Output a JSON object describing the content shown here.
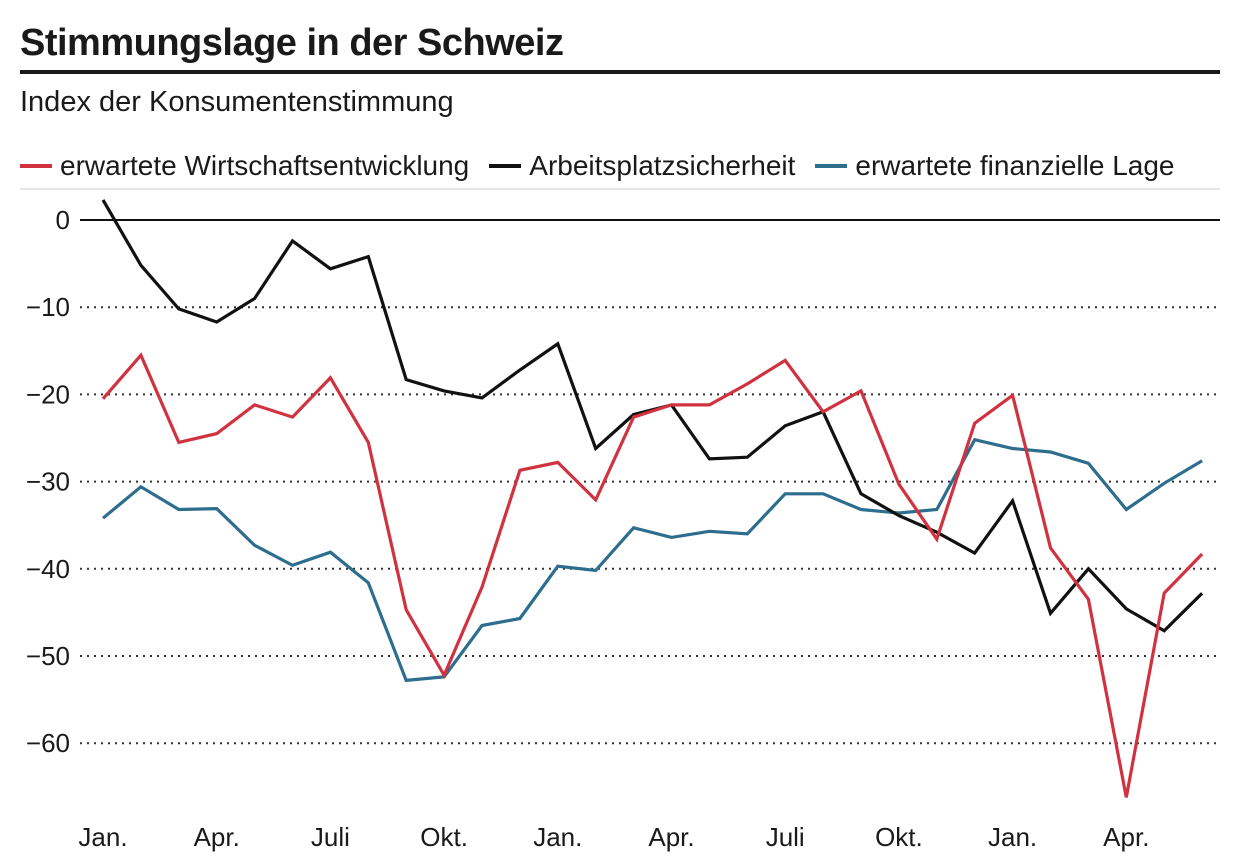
{
  "chart_data": {
    "type": "line",
    "title": "Stimmungslage in der Schweiz",
    "subtitle": "Index der Konsumentenstimmung",
    "xlabel": "",
    "ylabel": "",
    "ylim": [
      -66,
      2
    ],
    "yticks": [
      0,
      -10,
      -20,
      -30,
      -40,
      -50,
      -60
    ],
    "ytick_labels": [
      "0",
      "−10",
      "−20",
      "−30",
      "−40",
      "−50",
      "−60"
    ],
    "xtick_labels": [
      "Jan.",
      "Apr.",
      "Juli",
      "Okt.",
      "Jan.",
      "Apr.",
      "Juli",
      "Okt.",
      "Jan.",
      "Apr."
    ],
    "xtick_index": [
      0,
      3,
      6,
      9,
      12,
      15,
      18,
      21,
      24,
      27
    ],
    "x": [
      0,
      1,
      2,
      3,
      4,
      5,
      6,
      7,
      8,
      9,
      10,
      11,
      12,
      13,
      14,
      15,
      16,
      17,
      18,
      19,
      20,
      21,
      22,
      23,
      24,
      25,
      26,
      27,
      28,
      29
    ],
    "series": [
      {
        "name": "erwartete Wirtschaftsentwicklung",
        "color": "#d0323f",
        "values": [
          -20.5,
          -15.5,
          -25.5,
          -24.5,
          -21.2,
          -22.6,
          -18.1,
          -25.5,
          -44.7,
          -52.2,
          -42.1,
          -28.7,
          -27.8,
          -32.1,
          -22.6,
          -21.2,
          -21.2,
          -18.8,
          -16.1,
          -22.0,
          -19.6,
          -30.3,
          -36.6,
          -23.3,
          -20.1,
          -37.6,
          -43.5,
          -66.2,
          -42.8,
          -38.3
        ]
      },
      {
        "name": "Arbeitsplatzsicherheit",
        "color": "#111111",
        "values": [
          2.3,
          -5.2,
          -10.2,
          -11.7,
          -9.0,
          -2.4,
          -5.6,
          -4.2,
          -18.3,
          -19.6,
          -20.4,
          -17.2,
          -14.2,
          -26.2,
          -22.3,
          -21.2,
          -27.4,
          -27.2,
          -23.6,
          -22.0,
          -31.4,
          -33.9,
          -35.8,
          -38.2,
          -32.2,
          -45.1,
          -40.0,
          -44.6,
          -47.1,
          -42.8
        ]
      },
      {
        "name": "erwartete finanzielle Lage",
        "color": "#2d6d8e",
        "values": [
          -34.2,
          -30.6,
          -33.2,
          -33.1,
          -37.3,
          -39.6,
          -38.1,
          -41.6,
          -52.8,
          -52.4,
          -46.5,
          -45.7,
          -39.7,
          -40.2,
          -35.3,
          -36.4,
          -35.7,
          -36.0,
          -31.4,
          -31.4,
          -33.2,
          -33.6,
          -33.2,
          -25.2,
          -26.2,
          -26.6,
          -27.9,
          -33.2,
          -30.2,
          -27.6
        ]
      }
    ]
  }
}
